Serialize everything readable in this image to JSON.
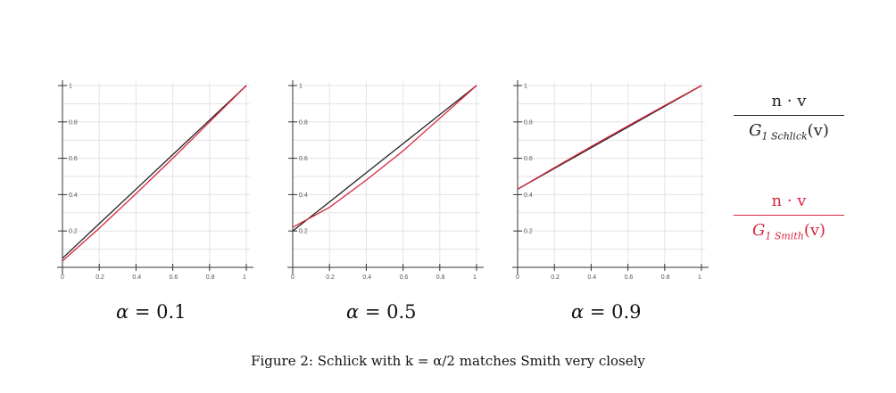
{
  "chart_data": [
    {
      "type": "line",
      "title": "α = 0.1",
      "alpha": 0.1,
      "xlim": [
        0,
        1
      ],
      "ylim": [
        0,
        1
      ],
      "grid": true,
      "x_ticks": [
        "0",
        "0.2",
        "0.4",
        "0.6",
        "0.8",
        "1"
      ],
      "y_ticks": [
        "0.2",
        "0.4",
        "0.6",
        "0.8",
        "1"
      ],
      "series": [
        {
          "name": "n·v / G1 Schlick(v)",
          "color": "#222222",
          "x": [
            0,
            0.2,
            0.4,
            0.6,
            0.8,
            1.0
          ],
          "y": [
            0.05,
            0.24,
            0.43,
            0.62,
            0.81,
            1.0
          ]
        },
        {
          "name": "n·v / G1 Smith(v)",
          "color": "#d6283f",
          "x": [
            0,
            0.2,
            0.4,
            0.6,
            0.8,
            1.0
          ],
          "y": [
            0.035,
            0.215,
            0.405,
            0.6,
            0.8,
            1.0
          ]
        }
      ]
    },
    {
      "type": "line",
      "title": "α = 0.5",
      "alpha": 0.5,
      "xlim": [
        0,
        1
      ],
      "ylim": [
        0,
        1
      ],
      "grid": true,
      "x_ticks": [
        "0",
        "0.2",
        "0.4",
        "0.6",
        "0.8",
        "1"
      ],
      "y_ticks": [
        "0.2",
        "0.4",
        "0.6",
        "0.8",
        "1"
      ],
      "series": [
        {
          "name": "n·v / G1 Schlick(v)",
          "color": "#222222",
          "x": [
            0,
            0.2,
            0.4,
            0.6,
            0.8,
            1.0
          ],
          "y": [
            0.2,
            0.36,
            0.52,
            0.68,
            0.84,
            1.0
          ]
        },
        {
          "name": "n·v / G1 Smith(v)",
          "color": "#d6283f",
          "x": [
            0,
            0.2,
            0.4,
            0.6,
            0.8,
            1.0
          ],
          "y": [
            0.22,
            0.33,
            0.48,
            0.64,
            0.82,
            1.0
          ]
        }
      ]
    },
    {
      "type": "line",
      "title": "α = 0.9",
      "alpha": 0.9,
      "xlim": [
        0,
        1
      ],
      "ylim": [
        0,
        1
      ],
      "grid": true,
      "x_ticks": [
        "0",
        "0.2",
        "0.4",
        "0.6",
        "0.8",
        "1"
      ],
      "y_ticks": [
        "0.2",
        "0.4",
        "0.6",
        "0.8",
        "1"
      ],
      "series": [
        {
          "name": "n·v / G1 Schlick(v)",
          "color": "#222222",
          "x": [
            0,
            0.2,
            0.4,
            0.6,
            0.8,
            1.0
          ],
          "y": [
            0.43,
            0.544,
            0.658,
            0.772,
            0.886,
            1.0
          ]
        },
        {
          "name": "n·v / G1 Smith(v)",
          "color": "#d6283f",
          "x": [
            0,
            0.2,
            0.4,
            0.6,
            0.8,
            1.0
          ],
          "y": [
            0.43,
            0.548,
            0.664,
            0.778,
            0.89,
            1.0
          ]
        }
      ]
    }
  ],
  "labels": {
    "panel1": {
      "symbol": "α",
      "rest": " = 0.1"
    },
    "panel2": {
      "symbol": "α",
      "rest": " = 0.5"
    },
    "panel3": {
      "symbol": "α",
      "rest": " = 0.9"
    }
  },
  "legend": {
    "schlick": {
      "numerator": "n · v",
      "g": "G",
      "sub": "1 Schlick",
      "arg": "(v)",
      "color": "#222222"
    },
    "smith": {
      "numerator": "n · v",
      "g": "G",
      "sub": "1 Smith",
      "arg": "(v)",
      "color": "#d6283f"
    }
  },
  "caption": "Figure 2: Schlick with k = α/2 matches Smith very closely"
}
